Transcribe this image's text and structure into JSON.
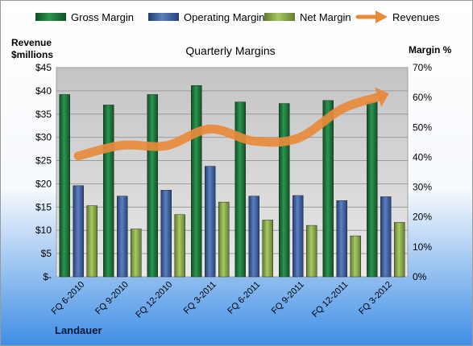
{
  "chart_data": {
    "type": "bar",
    "title": "Quarterly Margins",
    "left_axis_title": [
      "Revenue",
      "$millions"
    ],
    "right_axis_title": "Margin %",
    "company": "Landauer",
    "categories": [
      "FQ 6-2010",
      "FQ 9-2010",
      "FQ 12-2010",
      "FQ 3-2011",
      "FQ 6-2011",
      "FQ 9-2011",
      "FQ 12-2011",
      "FQ 3-2012"
    ],
    "left_ticks": [
      "$-",
      "$5",
      "$10",
      "$15",
      "$20",
      "$25",
      "$30",
      "$35",
      "$40",
      "$45"
    ],
    "right_ticks": [
      "0%",
      "10%",
      "20%",
      "30%",
      "40%",
      "50%",
      "60%",
      "70%"
    ],
    "left_ylim": [
      0,
      45
    ],
    "right_ylim": [
      0,
      70
    ],
    "grid": true,
    "legend_position": "top",
    "series": [
      {
        "name": "Gross Margin",
        "type": "bar",
        "axis": "right",
        "color": "#1e7a3c",
        "values": [
          61,
          57.5,
          61,
          64,
          58.5,
          58,
          59,
          58.5
        ]
      },
      {
        "name": "Operating Margin",
        "type": "bar",
        "axis": "right",
        "color": "#3c64a8",
        "values": [
          30.5,
          27,
          29,
          37,
          27,
          27.2,
          25.5,
          26.8
        ]
      },
      {
        "name": "Net Margin",
        "type": "bar",
        "axis": "right",
        "color": "#8cae4a",
        "values": [
          23.8,
          16,
          20.8,
          25,
          19,
          17.2,
          13.7,
          18.2
        ]
      },
      {
        "name": "Revenues",
        "type": "line",
        "axis": "left",
        "color": "#e88a3c",
        "values": [
          26,
          28.3,
          28.2,
          31.8,
          29.2,
          29.8,
          36.1,
          39.2
        ]
      }
    ]
  }
}
